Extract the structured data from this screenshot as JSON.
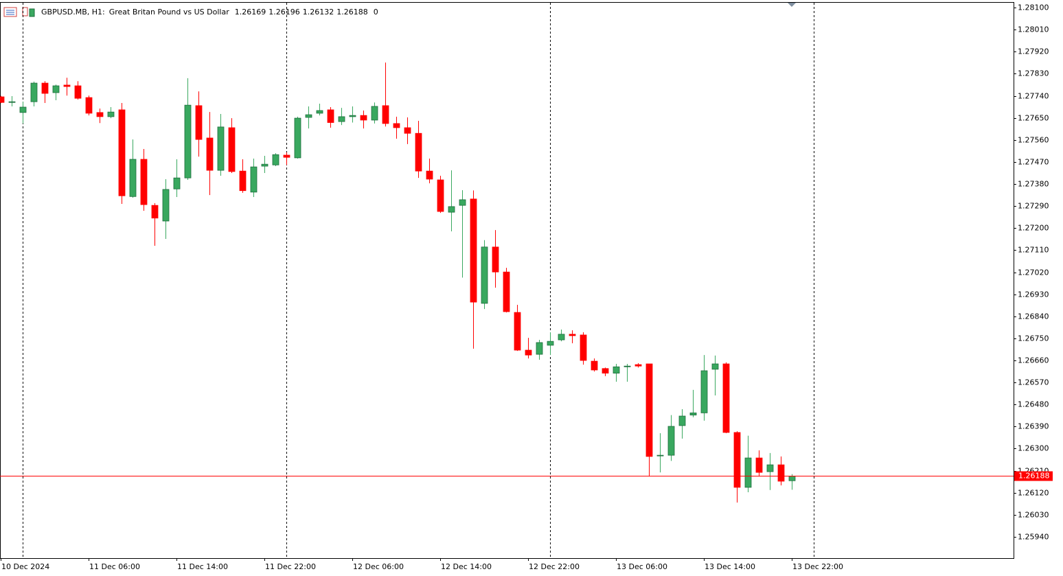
{
  "chart_data": {
    "type": "candlestick",
    "symbol": "GBPUSD.MB, H1:",
    "description": "Great Britan Pound vs US Dollar",
    "spread": 0,
    "up_color": "#39a85f",
    "down_color": "#ff0000",
    "price_line_color": "#ff0000",
    "categories": [
      "10 Dec 2024",
      null,
      null,
      null,
      null,
      null,
      null,
      null,
      "11 Dec 06:00",
      null,
      null,
      null,
      null,
      null,
      null,
      null,
      "11 Dec 14:00",
      null,
      null,
      null,
      null,
      null,
      null,
      null,
      "11 Dec 22:00",
      null,
      null,
      null,
      null,
      null,
      null,
      null,
      "12 Dec 06:00",
      null,
      null,
      null,
      null,
      null,
      null,
      null,
      "12 Dec 14:00",
      null,
      null,
      null,
      null,
      null,
      null,
      null,
      "12 Dec 22:00",
      null,
      null,
      null,
      null,
      null,
      null,
      null,
      "13 Dec 06:00",
      null,
      null,
      null,
      null,
      null,
      null,
      null,
      "13 Dec 14:00",
      null,
      null,
      null,
      null,
      null,
      null,
      null,
      "13 Dec 22:00"
    ],
    "open": [
      1.27736,
      1.27713,
      1.27672,
      1.27716,
      1.27792,
      1.27753,
      1.27784,
      1.27781,
      1.27733,
      1.27672,
      1.27655,
      1.27683,
      1.27329,
      1.27481,
      1.27293,
      1.27229,
      1.2736,
      1.27405,
      1.277,
      1.27568,
      1.27436,
      1.2761,
      1.27433,
      1.27347,
      1.27453,
      1.27458,
      1.27498,
      1.27487,
      1.27652,
      1.27669,
      1.27683,
      1.27635,
      1.27655,
      1.2766,
      1.27641,
      1.277,
      1.27627,
      1.2761,
      1.27587,
      1.27433,
      1.27397,
      1.27265,
      1.27293,
      1.27319,
      1.26893,
      1.27123,
      1.27021,
      1.26856,
      1.26702,
      1.26685,
      1.26722,
      1.26744,
      1.26767,
      1.26764,
      1.26657,
      1.26627,
      1.26608,
      1.26634,
      1.26643,
      1.26646,
      1.26271,
      1.26273,
      1.26394,
      1.26437,
      1.26446,
      1.26624,
      1.26646,
      1.26366,
      1.26142,
      1.26262,
      1.26206,
      1.26234,
      1.26169
    ],
    "high": [
      1.2774,
      1.27739,
      1.27716,
      1.27798,
      1.278,
      1.27786,
      1.27814,
      1.278,
      1.27741,
      1.27688,
      1.27694,
      1.27711,
      1.27562,
      1.27523,
      1.27302,
      1.274,
      1.27481,
      1.27812,
      1.27758,
      1.27674,
      1.27666,
      1.27649,
      1.27481,
      1.27484,
      1.27495,
      1.27506,
      1.27509,
      1.27655,
      1.27697,
      1.27708,
      1.27694,
      1.27691,
      1.27697,
      1.2768,
      1.27713,
      1.27876,
      1.27655,
      1.27652,
      1.27638,
      1.27484,
      1.27414,
      1.27436,
      1.27355,
      1.27354,
      1.27151,
      1.27192,
      1.27038,
      1.26887,
      1.26752,
      1.26744,
      1.26775,
      1.26786,
      1.26783,
      1.26775,
      1.26668,
      1.26631,
      1.26646,
      1.26646,
      1.26649,
      1.26646,
      1.26363,
      1.26437,
      1.26461,
      1.2654,
      1.26682,
      1.2668,
      1.26652,
      1.26371,
      1.26353,
      1.26293,
      1.26282,
      1.26268,
      1.26196
    ],
    "low": [
      1.2771,
      1.27697,
      1.27627,
      1.27697,
      1.27711,
      1.27722,
      1.27741,
      1.27725,
      1.2766,
      1.27629,
      1.27649,
      1.27299,
      1.27324,
      1.27271,
      1.27128,
      1.27156,
      1.27327,
      1.27397,
      1.27492,
      1.27335,
      1.27414,
      1.27425,
      1.27344,
      1.27327,
      1.27425,
      1.27453,
      1.27458,
      1.27484,
      1.27607,
      1.2766,
      1.2761,
      1.27621,
      1.27631,
      1.27607,
      1.27627,
      1.27615,
      1.27565,
      1.27543,
      1.27405,
      1.27383,
      1.27262,
      1.27187,
      1.26998,
      1.26708,
      1.2687,
      1.26957,
      1.26856,
      1.26699,
      1.26668,
      1.26663,
      1.26682,
      1.26738,
      1.2673,
      1.26643,
      1.26615,
      1.26596,
      1.26573,
      1.26573,
      1.26631,
      1.26186,
      1.26203,
      1.2625,
      1.26341,
      1.26428,
      1.26414,
      1.26517,
      1.26363,
      1.2608,
      1.26122,
      1.26186,
      1.26131,
      1.2615,
      1.26132
    ],
    "close": [
      1.27713,
      1.27716,
      1.27694,
      1.27792,
      1.2775,
      1.27781,
      1.27778,
      1.2773,
      1.27669,
      1.27655,
      1.27674,
      1.27332,
      1.27481,
      1.27296,
      1.27241,
      1.27358,
      1.27405,
      1.27702,
      1.27562,
      1.27436,
      1.27613,
      1.27431,
      1.27353,
      1.2745,
      1.27461,
      1.275,
      1.27489,
      1.27649,
      1.27663,
      1.2768,
      1.27631,
      1.27655,
      1.2766,
      1.27641,
      1.27697,
      1.27627,
      1.2761,
      1.27587,
      1.27433,
      1.274,
      1.27268,
      1.27288,
      1.27316,
      1.26898,
      1.27123,
      1.27021,
      1.26859,
      1.26702,
      1.26682,
      1.26733,
      1.26738,
      1.26767,
      1.26761,
      1.2666,
      1.26621,
      1.26608,
      1.26634,
      1.26637,
      1.26637,
      1.26268,
      1.26273,
      1.26391,
      1.26433,
      1.26446,
      1.26618,
      1.26646,
      1.26366,
      1.26142,
      1.26262,
      1.26203,
      1.26234,
      1.26167,
      1.26188
    ],
    "ylim": [
      1.25853,
      1.2812
    ],
    "yticks": [
      {
        "value": 1.281,
        "label": "1.28100"
      },
      {
        "value": 1.2801,
        "label": "1.28010"
      },
      {
        "value": 1.2792,
        "label": "1.27920"
      },
      {
        "value": 1.2783,
        "label": "1.27830"
      },
      {
        "value": 1.2774,
        "label": "1.27740"
      },
      {
        "value": 1.2765,
        "label": "1.27650"
      },
      {
        "value": 1.2756,
        "label": "1.27560"
      },
      {
        "value": 1.2747,
        "label": "1.27470"
      },
      {
        "value": 1.2738,
        "label": "1.27380"
      },
      {
        "value": 1.2729,
        "label": "1.27290"
      },
      {
        "value": 1.272,
        "label": "1.27200"
      },
      {
        "value": 1.2711,
        "label": "1.27110"
      },
      {
        "value": 1.2702,
        "label": "1.27020"
      },
      {
        "value": 1.2693,
        "label": "1.26930"
      },
      {
        "value": 1.2684,
        "label": "1.26840"
      },
      {
        "value": 1.2675,
        "label": "1.26750"
      },
      {
        "value": 1.2666,
        "label": "1.26660"
      },
      {
        "value": 1.2657,
        "label": "1.26570"
      },
      {
        "value": 1.2648,
        "label": "1.26480"
      },
      {
        "value": 1.2639,
        "label": "1.26390"
      },
      {
        "value": 1.263,
        "label": "1.26300"
      },
      {
        "value": 1.2621,
        "label": "1.26210"
      },
      {
        "value": 1.2612,
        "label": "1.26120"
      },
      {
        "value": 1.2603,
        "label": "1.26030"
      },
      {
        "value": 1.2594,
        "label": "1.25940"
      }
    ],
    "grid": false
  }
}
